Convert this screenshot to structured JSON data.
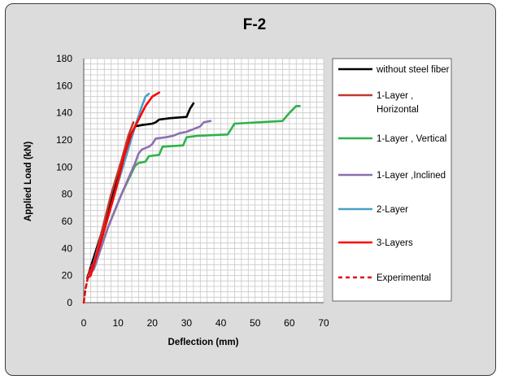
{
  "chart_data": {
    "type": "line",
    "title": "F-2",
    "xlabel": "Deflection (mm)",
    "ylabel": "Applied Load (kN)",
    "xlim": [
      0,
      70
    ],
    "ylim": [
      0,
      180
    ],
    "x_ticks": [
      "0",
      "10",
      "20",
      "30",
      "40",
      "50",
      "60",
      "70"
    ],
    "y_ticks": [
      "0",
      "20",
      "40",
      "60",
      "80",
      "100",
      "120",
      "140",
      "160",
      "180"
    ],
    "grid": true,
    "legend_position": "right",
    "series": [
      {
        "name": "without steel fiber",
        "color": "#000000",
        "dash": false,
        "points": [
          [
            1,
            18
          ],
          [
            5,
            50
          ],
          [
            10,
            95
          ],
          [
            13,
            120
          ],
          [
            15,
            130
          ],
          [
            17,
            131
          ],
          [
            20,
            132
          ],
          [
            21,
            133
          ],
          [
            22,
            135
          ],
          [
            25,
            136
          ],
          [
            30,
            137
          ],
          [
            31,
            143
          ],
          [
            32,
            147
          ]
        ]
      },
      {
        "name": "1-Layer , Horizontal",
        "color": "#c0392b",
        "dash": false,
        "points": [
          [
            1,
            18
          ],
          [
            2,
            20
          ],
          [
            5,
            50
          ],
          [
            8,
            80
          ],
          [
            11,
            105
          ],
          [
            13,
            123
          ],
          [
            14.5,
            133
          ]
        ]
      },
      {
        "name": "1-Layer , Vertical",
        "color": "#2db34a",
        "dash": false,
        "points": [
          [
            1,
            18
          ],
          [
            3,
            25
          ],
          [
            7,
            55
          ],
          [
            11,
            80
          ],
          [
            15,
            101
          ],
          [
            16,
            103
          ],
          [
            18,
            104
          ],
          [
            19,
            108
          ],
          [
            22,
            109
          ],
          [
            23,
            115
          ],
          [
            29,
            116
          ],
          [
            30,
            122
          ],
          [
            33,
            123
          ],
          [
            42,
            124
          ],
          [
            44,
            132
          ],
          [
            58,
            134
          ],
          [
            60,
            140
          ],
          [
            62,
            145
          ],
          [
            63,
            145
          ]
        ]
      },
      {
        "name": "1-Layer ,Inclined",
        "color": "#8e6fb0",
        "dash": false,
        "points": [
          [
            1,
            18
          ],
          [
            3,
            25
          ],
          [
            7,
            55
          ],
          [
            11,
            80
          ],
          [
            15,
            103
          ],
          [
            16,
            110
          ],
          [
            17,
            113
          ],
          [
            19,
            115
          ],
          [
            20,
            117
          ],
          [
            21,
            121
          ],
          [
            24,
            122
          ],
          [
            26,
            123
          ],
          [
            28,
            125
          ],
          [
            30,
            126
          ],
          [
            32,
            128
          ],
          [
            34,
            130
          ],
          [
            35,
            133
          ],
          [
            37,
            134
          ]
        ]
      },
      {
        "name": "2-Layer",
        "color": "#4b9fc8",
        "dash": false,
        "points": [
          [
            1,
            18
          ],
          [
            2,
            22
          ],
          [
            5,
            45
          ],
          [
            9,
            80
          ],
          [
            12,
            105
          ],
          [
            15,
            130
          ],
          [
            17,
            145
          ],
          [
            18,
            152
          ],
          [
            19,
            154
          ]
        ]
      },
      {
        "name": "3-Layers",
        "color": "#ff0000",
        "dash": false,
        "points": [
          [
            1,
            18
          ],
          [
            2,
            20
          ],
          [
            5,
            45
          ],
          [
            9,
            80
          ],
          [
            12,
            110
          ],
          [
            14,
            125
          ],
          [
            16,
            135
          ],
          [
            18,
            145
          ],
          [
            20,
            152
          ],
          [
            22,
            155
          ]
        ]
      },
      {
        "name": "Experimental",
        "color": "#e01010",
        "dash": true,
        "points": [
          [
            0,
            0
          ],
          [
            0.5,
            10
          ],
          [
            1,
            16
          ],
          [
            1.5,
            22
          ],
          [
            2.5,
            28
          ]
        ]
      }
    ]
  }
}
